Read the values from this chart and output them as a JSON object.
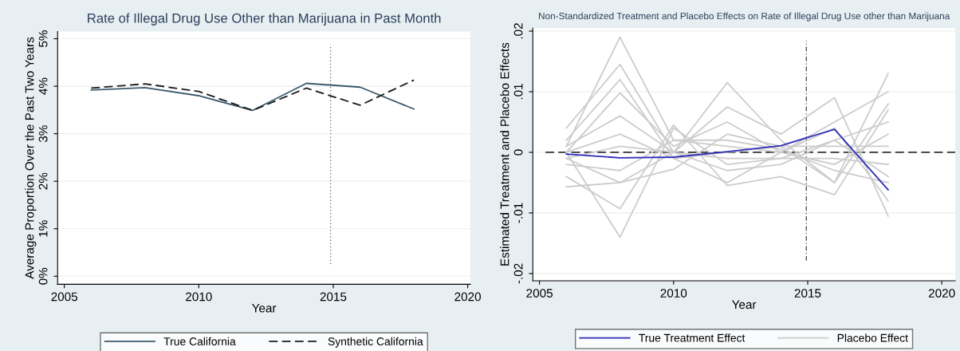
{
  "chart_data": [
    {
      "type": "line",
      "title": "Rate of Illegal Drug Use Other than Marijuana in Past Month",
      "xlabel": "Year",
      "ylabel": "Average Proportion Over the Past Two Years",
      "x": [
        2006,
        2008,
        2010,
        2012,
        2014,
        2016,
        2018
      ],
      "series": [
        {
          "name": "True California",
          "color": "#3d5a6c",
          "line_style": "solid",
          "values": [
            3.92,
            3.97,
            3.8,
            3.49,
            4.06,
            3.98,
            3.52
          ]
        },
        {
          "name": "Synthetic California",
          "color": "#1a1a1a",
          "line_style": "dashed",
          "values": [
            3.96,
            4.05,
            3.89,
            3.49,
            3.96,
            3.6,
            4.13
          ]
        }
      ],
      "xlim": [
        2004.75,
        2020.1
      ],
      "xticks": [
        2005,
        2010,
        2015,
        2020
      ],
      "ylim": [
        -0.17,
        5.15
      ],
      "yticks": [
        {
          "value": 0,
          "label": "0%"
        },
        {
          "value": 1,
          "label": "1%"
        },
        {
          "value": 2,
          "label": "2%"
        },
        {
          "value": 3,
          "label": "3%"
        },
        {
          "value": 4,
          "label": "4%"
        },
        {
          "value": 5,
          "label": "5%"
        }
      ],
      "ref_lines": [
        {
          "axis": "x",
          "value": 2014.9,
          "color": "#777777",
          "line_style": "dotted"
        }
      ],
      "grid": "y",
      "legend": "bottom"
    },
    {
      "type": "line",
      "title": "Non-Standardized Treatment and Placebo Effects on Rate of Illegal Drug Use other than Marijuana",
      "xlabel": "Year",
      "ylabel": "Estimated Treatment and Placebo Effects",
      "x": [
        2006,
        2008,
        2010,
        2012,
        2014,
        2016,
        2018
      ],
      "series": [
        {
          "name": "Placebo Effect",
          "color": "#cccccc",
          "line_style": "solid",
          "values": [
            0.001,
            0.019,
            0.002,
            0.001,
            0.0,
            -0.002,
            0.003
          ]
        },
        {
          "color": "#cccccc",
          "line_style": "solid",
          "values": [
            0.0,
            -0.014,
            0.004,
            -0.002,
            -0.001,
            0.002,
            -0.004
          ]
        },
        {
          "color": "#cccccc",
          "line_style": "solid",
          "values": [
            0.004,
            0.0145,
            0.0,
            0.0115,
            0.002,
            -0.005,
            0.013
          ]
        },
        {
          "color": "#cccccc",
          "line_style": "solid",
          "values": [
            -0.0057,
            -0.005,
            0.0,
            0.0075,
            0.003,
            0.009,
            -0.0105
          ]
        },
        {
          "color": "#cccccc",
          "line_style": "solid",
          "values": [
            0.002,
            0.012,
            -0.001,
            -0.005,
            0.0,
            0.005,
            0.01
          ]
        },
        {
          "color": "#cccccc",
          "line_style": "solid",
          "values": [
            -0.004,
            -0.0093,
            0.0045,
            -0.0055,
            -0.004,
            -0.007,
            0.007
          ]
        },
        {
          "color": "#cccccc",
          "line_style": "solid",
          "values": [
            0.0,
            0.0098,
            0.001,
            0.005,
            0.0,
            0.004,
            -0.008
          ]
        },
        {
          "color": "#cccccc",
          "line_style": "solid",
          "values": [
            -0.001,
            -0.005,
            -0.0028,
            0.003,
            0.001,
            -0.005,
            0.008
          ]
        },
        {
          "color": "#cccccc",
          "line_style": "solid",
          "values": [
            0.001,
            0.006,
            0.0,
            -0.003,
            -0.002,
            0.002,
            0.005
          ]
        },
        {
          "color": "#cccccc",
          "line_style": "solid",
          "values": [
            -0.002,
            -0.003,
            0.002,
            0.002,
            0.0005,
            -0.003,
            -0.005
          ]
        },
        {
          "color": "#cccccc",
          "line_style": "solid",
          "values": [
            0.0,
            0.003,
            -0.001,
            0.0,
            0.001,
            0.001,
            0.001
          ]
        },
        {
          "color": "#cccccc",
          "line_style": "solid",
          "values": [
            -0.001,
            0.001,
            0.0,
            -0.001,
            -0.001,
            -0.001,
            -0.002
          ]
        },
        {
          "name": "True Treatment Effect",
          "color": "#2e2eb8",
          "line_style": "solid",
          "values": [
            -0.0003,
            -0.0009,
            -0.0008,
            0.0001,
            0.0011,
            0.0038,
            -0.0062
          ]
        }
      ],
      "xlim": [
        2004.75,
        2020.5
      ],
      "xticks": [
        2005,
        2010,
        2015,
        2020
      ],
      "ylim": [
        -0.0212,
        0.0205
      ],
      "yticks": [
        {
          "value": -0.02,
          "label": "-.02"
        },
        {
          "value": -0.01,
          "label": "-.01"
        },
        {
          "value": 0,
          "label": "0"
        },
        {
          "value": 0.01,
          "label": ".01"
        },
        {
          "value": 0.02,
          "label": ".02"
        }
      ],
      "ref_lines": [
        {
          "axis": "x",
          "value": 2014.95,
          "color": "#555555",
          "line_style": "dashdot"
        },
        {
          "axis": "y",
          "value": 0,
          "color": "#333333",
          "line_style": "dashed"
        }
      ],
      "grid": "y",
      "legend": "bottom"
    }
  ]
}
